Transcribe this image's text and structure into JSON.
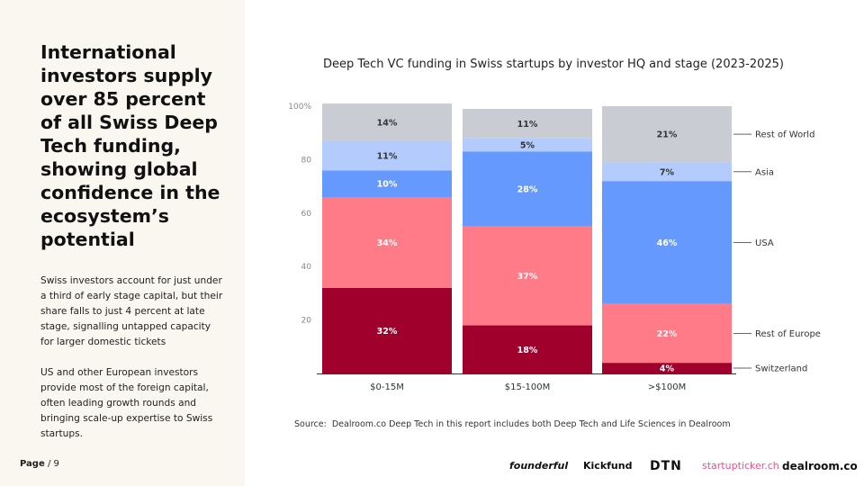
{
  "left_panel": {
    "headline": "International investors supply over 85 percent of all Swiss Deep Tech funding, showing global confidence in the ecosystem’s potential",
    "paragraph_1": "Swiss investors account for just under a third of early stage capital, but their share falls to just 4 percent at late stage, signalling untapped capacity for larger domestic tickets",
    "paragraph_2": "US and other European investors provide most of the foreign capital, often leading growth rounds and bringing scale-up expertise to Swiss startups."
  },
  "footer": {
    "page_label": "Page",
    "page_number": "/ 9",
    "source_label": "Source:",
    "source_text": "Dealroom.co  Deep Tech in this report includes both Deep Tech and Life Sciences in Dealroom",
    "logos": {
      "founderful": "founderful",
      "kickfund": "Kickfund",
      "dtn": "DTN",
      "startupticker": "startupticker.ch",
      "dealroom": "dealroom.co"
    }
  },
  "chart_data": {
    "type": "bar",
    "stacked": true,
    "title": "Deep Tech VC funding in Swiss startups by investor HQ and stage (2023-2025)",
    "categories": [
      "$0-15M",
      "$15-100M",
      ">$100M"
    ],
    "ylim": [
      0,
      100
    ],
    "yticks": [
      20,
      40,
      60,
      80,
      100
    ],
    "ytick_labels": [
      "20",
      "40",
      "60",
      "80",
      "100%"
    ],
    "grid": false,
    "legend_position": "right",
    "series": [
      {
        "name": "Switzerland",
        "color": "#a0002c",
        "label_color": "#ffffff",
        "values": [
          32,
          18,
          4
        ]
      },
      {
        "name": "Rest of Europe",
        "color": "#ff7b87",
        "label_color": "#ffffff",
        "values": [
          34,
          37,
          22
        ]
      },
      {
        "name": "USA",
        "color": "#6699fd",
        "label_color": "#ffffff",
        "values": [
          10,
          28,
          46
        ]
      },
      {
        "name": "Asia",
        "color": "#b3cbfd",
        "label_color": "#333333",
        "values": [
          11,
          5,
          7
        ]
      },
      {
        "name": "Rest of World",
        "color": "#c9ccd3",
        "label_color": "#333333",
        "values": [
          14,
          11,
          21
        ]
      }
    ]
  }
}
